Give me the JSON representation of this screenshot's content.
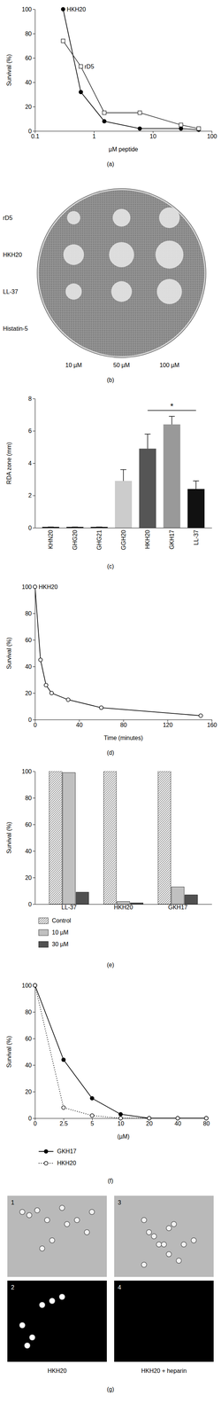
{
  "chart_data": [
    {
      "type": "line",
      "panel_label": "(a)",
      "x_label": "µM peptide",
      "y_label": "Survival (%)",
      "log": "x",
      "xlim": [
        0.1,
        100
      ],
      "xticks": [
        0.1,
        1,
        10,
        100
      ],
      "ylim": [
        0,
        100
      ],
      "yticks": [
        0,
        20,
        40,
        60,
        80,
        100
      ],
      "series": [
        {
          "name": "HKH20",
          "color": "#000000",
          "marker": "circle",
          "line_style": "solid",
          "x": [
            0.3,
            0.6,
            1.5,
            6,
            30,
            60
          ],
          "values": [
            100,
            32,
            8,
            2,
            2,
            1
          ]
        },
        {
          "name": "rD5",
          "color": "#333333",
          "marker": "open-square",
          "line_style": "solid",
          "x": [
            0.3,
            0.6,
            1.5,
            6,
            30,
            60
          ],
          "values": [
            74,
            53,
            15,
            15,
            5,
            2
          ]
        }
      ]
    },
    {
      "type": "image",
      "panel_label": "(b)",
      "row_labels": [
        "rD5",
        "HKH20",
        "LL-37",
        "Histatin-5"
      ],
      "column_labels": [
        "10 µM",
        "50 µM",
        "100 µM"
      ]
    },
    {
      "type": "bar",
      "panel_label": "(c)",
      "y_label": "RDA zone (mm)",
      "categories": [
        "KHN20",
        "GHG20",
        "GHG21",
        "GGH20",
        "HKH20",
        "GKH17",
        "LL-37"
      ],
      "values": [
        0.05,
        0.05,
        0.05,
        2.9,
        4.9,
        6.4,
        2.4
      ],
      "errors": [
        0,
        0,
        0,
        0.7,
        0.9,
        0.5,
        0.5
      ],
      "colors": [
        "#000000",
        "#000000",
        "#000000",
        "#cccccc",
        "#555555",
        "#999999",
        "#111111"
      ],
      "ylim": [
        0,
        8
      ],
      "yticks": [
        0,
        2,
        4,
        6,
        8
      ],
      "annotations": [
        {
          "text": "*"
        }
      ]
    },
    {
      "type": "line",
      "panel_label": "(d)",
      "x_label": "Time (minutes)",
      "y_label": "Survival (%)",
      "xlim": [
        0,
        160
      ],
      "xticks": [
        0,
        40,
        80,
        120,
        160
      ],
      "ylim": [
        0,
        100
      ],
      "yticks": [
        0,
        20,
        40,
        60,
        80,
        100
      ],
      "series": [
        {
          "name": "HKH20",
          "color": "#000000",
          "marker": "open-circle",
          "line_style": "solid",
          "x": [
            0,
            5,
            10,
            15,
            30,
            60,
            150
          ],
          "values": [
            100,
            45,
            26,
            20,
            15,
            9,
            3
          ]
        }
      ]
    },
    {
      "type": "bar",
      "panel_label": "(e)",
      "y_label": "Survival (%)",
      "categories": [
        "LL-37",
        "HKH20",
        "GKH17"
      ],
      "ylim": [
        0,
        100
      ],
      "yticks": [
        0,
        20,
        40,
        60,
        80,
        100
      ],
      "legend": "bottom",
      "series": [
        {
          "name": "Control",
          "color": "#ffffff",
          "values": [
            100,
            100,
            100
          ]
        },
        {
          "name": "10 µM",
          "color": "#c0c0c0",
          "values": [
            99,
            2,
            13
          ]
        },
        {
          "name": "30 µM",
          "color": "#505050",
          "values": [
            9,
            1,
            7
          ]
        }
      ]
    },
    {
      "type": "line",
      "panel_label": "(f)",
      "x_label": "(µM)",
      "y_label": "Survival (%)",
      "categories": [
        "0",
        "2.5",
        "5",
        "10",
        "20",
        "40",
        "80"
      ],
      "ylim": [
        0,
        100
      ],
      "yticks": [
        0,
        20,
        40,
        60,
        80,
        100
      ],
      "legend": "bottom",
      "series": [
        {
          "name": "GKH17",
          "color": "#000000",
          "marker": "circle",
          "line_style": "solid",
          "values": [
            100,
            44,
            15,
            3,
            0,
            0,
            0
          ]
        },
        {
          "name": "HKH20",
          "color": "#000000",
          "marker": "open-circle",
          "line_style": "dotted",
          "values": [
            100,
            8,
            2,
            0,
            0,
            0,
            0
          ]
        }
      ]
    },
    {
      "type": "image",
      "panel_label": "(g)",
      "image_labels": [
        "1",
        "2",
        "3",
        "4"
      ],
      "column_labels": [
        "HKH20",
        "HKH20 + heparin"
      ]
    }
  ]
}
